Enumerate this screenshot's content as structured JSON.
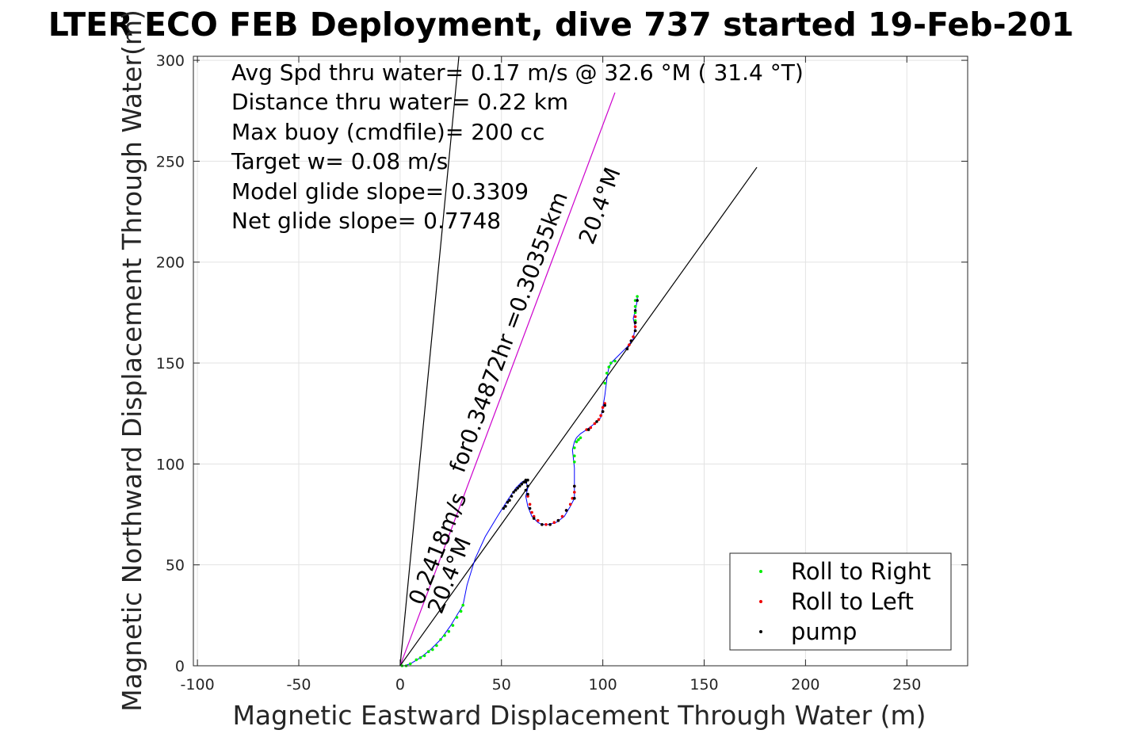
{
  "chart_data": {
    "type": "scatter",
    "title": "LTER ECO FEB Deployment, dive 737 started 19-Feb-201",
    "xlabel": "Magnetic Eastward Displacement Through Water (m)",
    "ylabel": "Magnetic Northward Displacement Through Water(m)",
    "xlim": [
      -102,
      280
    ],
    "ylim": [
      0,
      302
    ],
    "xticks": [
      -100,
      -50,
      0,
      50,
      100,
      150,
      200,
      250
    ],
    "yticks": [
      0,
      50,
      100,
      150,
      200,
      250,
      300
    ],
    "grid": true,
    "legend_position": "bottom-right",
    "info_lines": [
      "Avg Spd thru water=  0.17 m/s @  32.6 °M ( 31.4 °T)",
      "Distance thru water=  0.22 km",
      "Max buoy (cmdfile)= 200 cc",
      "Target w= 0.08 m/s",
      "Model glide slope= 0.3309",
      "Net glide slope= 0.7748"
    ],
    "annotations": {
      "steep_speed": "0.2418m/s",
      "steep_heading": "20.4°M",
      "magenta_label": "for0.34872hr =0.30355km",
      "magenta_heading": "20.4°M"
    },
    "lines": [
      {
        "name": "steep-line",
        "color": "#000000",
        "x": [
          0,
          29
        ],
        "y": [
          0,
          302
        ]
      },
      {
        "name": "heading-line",
        "color": "#cc00cc",
        "x": [
          0,
          106
        ],
        "y": [
          0,
          284
        ]
      },
      {
        "name": "net-line",
        "color": "#000000",
        "x": [
          0,
          176
        ],
        "y": [
          0,
          247
        ]
      }
    ],
    "track": {
      "color": "#0000ff",
      "x": [
        0,
        2,
        5,
        10,
        15,
        20,
        25,
        28,
        31,
        33,
        37,
        42,
        48,
        53,
        57,
        60,
        62,
        63,
        62,
        63,
        65,
        68,
        70,
        73,
        77,
        81,
        84,
        86,
        86,
        86,
        85,
        86,
        87,
        89,
        92,
        96,
        99,
        100,
        101,
        102,
        103,
        105,
        108,
        112,
        115,
        116,
        115,
        116,
        117,
        117
      ],
      "y": [
        0,
        0,
        1,
        4,
        8,
        13,
        20,
        25,
        30,
        40,
        53,
        64,
        74,
        82,
        88,
        91,
        92,
        88,
        84,
        79,
        74,
        71,
        70,
        70,
        71,
        74,
        79,
        83,
        89,
        98,
        107,
        111,
        113,
        115,
        117,
        120,
        123,
        128,
        134,
        142,
        148,
        151,
        154,
        158,
        162,
        168,
        172,
        176,
        181,
        183
      ]
    },
    "series": [
      {
        "name": "Roll to Right",
        "color": "#00ee00",
        "points": [
          [
            1,
            0
          ],
          [
            3,
            0
          ],
          [
            5,
            1
          ],
          [
            8,
            3
          ],
          [
            10,
            4
          ],
          [
            12,
            5
          ],
          [
            14,
            7
          ],
          [
            16,
            8
          ],
          [
            18,
            10
          ],
          [
            20,
            13
          ],
          [
            22,
            15
          ],
          [
            24,
            17
          ],
          [
            26,
            20
          ],
          [
            28,
            24
          ],
          [
            30,
            27
          ],
          [
            31,
            30
          ],
          [
            86,
            101
          ],
          [
            86,
            104
          ],
          [
            86,
            108
          ],
          [
            87,
            111
          ],
          [
            88,
            112
          ],
          [
            89,
            113
          ],
          [
            101,
            140
          ],
          [
            102,
            145
          ],
          [
            103,
            148
          ],
          [
            104,
            150
          ],
          [
            106,
            151
          ],
          [
            116,
            171
          ],
          [
            116,
            175
          ],
          [
            116,
            178
          ],
          [
            116,
            181
          ],
          [
            117,
            183
          ]
        ]
      },
      {
        "name": "Roll to Left",
        "color": "#ee0000",
        "points": [
          [
            63,
            84
          ],
          [
            64,
            80
          ],
          [
            65,
            76
          ],
          [
            66,
            74
          ],
          [
            68,
            72
          ],
          [
            70,
            70
          ],
          [
            72,
            70
          ],
          [
            74,
            70
          ],
          [
            76,
            71
          ],
          [
            78,
            72
          ],
          [
            80,
            74
          ],
          [
            82,
            77
          ],
          [
            84,
            80
          ],
          [
            85,
            83
          ],
          [
            86,
            86
          ],
          [
            86,
            89
          ],
          [
            92,
            117
          ],
          [
            94,
            118
          ],
          [
            96,
            120
          ],
          [
            98,
            122
          ],
          [
            99,
            124
          ],
          [
            100,
            126
          ],
          [
            100,
            128
          ],
          [
            101,
            130
          ],
          [
            112,
            157
          ],
          [
            113,
            159
          ],
          [
            114,
            161
          ],
          [
            115,
            163
          ],
          [
            116,
            166
          ],
          [
            116,
            168
          ],
          [
            116,
            170
          ],
          [
            116,
            173
          ]
        ]
      },
      {
        "name": "pump",
        "color": "#000000",
        "points": [
          [
            51,
            78
          ],
          [
            52,
            79
          ],
          [
            53,
            81
          ],
          [
            54,
            82
          ],
          [
            55,
            84
          ],
          [
            56,
            86
          ],
          [
            57,
            87
          ],
          [
            58,
            88
          ],
          [
            59,
            89
          ],
          [
            60,
            90
          ],
          [
            61,
            91
          ],
          [
            62,
            92
          ],
          [
            63,
            92
          ],
          [
            62,
            91
          ],
          [
            63,
            89
          ],
          [
            62,
            87
          ],
          [
            63,
            85
          ],
          [
            64,
            78
          ],
          [
            66,
            73
          ],
          [
            70,
            70
          ],
          [
            74,
            70
          ],
          [
            78,
            72
          ],
          [
            82,
            77
          ],
          [
            86,
            83
          ],
          [
            86,
            89
          ],
          [
            93,
            117
          ],
          [
            97,
            121
          ],
          [
            100,
            126
          ],
          [
            101,
            129
          ],
          [
            112,
            157
          ],
          [
            114,
            161
          ],
          [
            116,
            166
          ],
          [
            116,
            170
          ],
          [
            116,
            176
          ],
          [
            117,
            181
          ]
        ]
      }
    ]
  }
}
